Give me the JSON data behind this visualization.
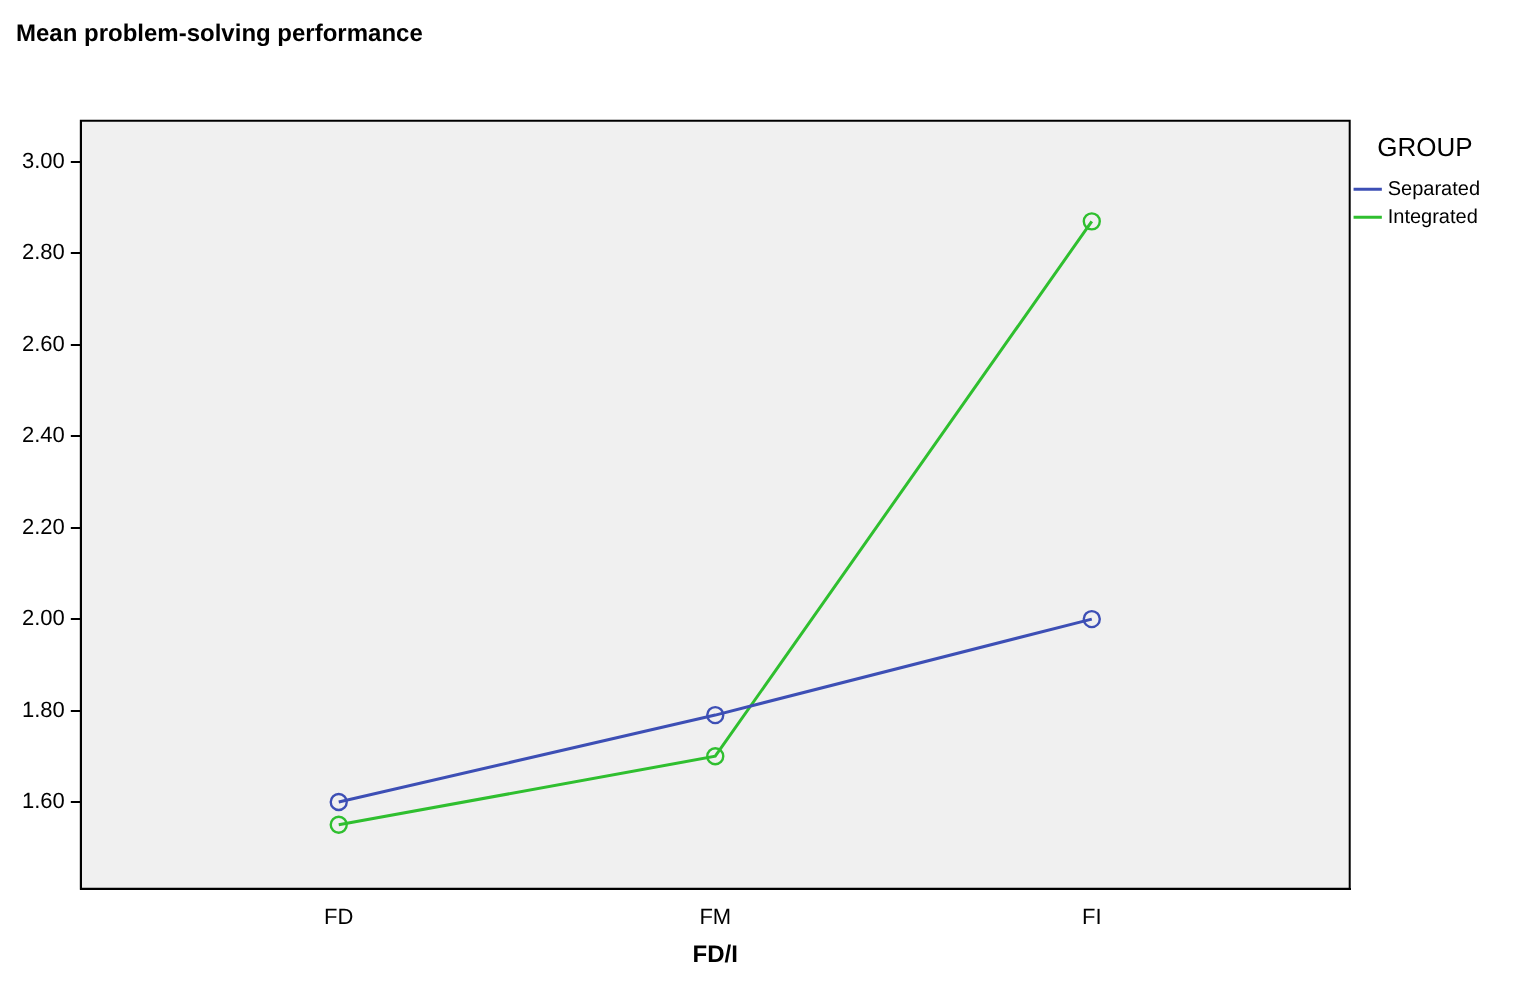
{
  "chart_data": {
    "type": "line",
    "title": "Mean problem-solving performance",
    "xlabel": "FD/I",
    "categories": [
      "FD",
      "FM",
      "FI"
    ],
    "series": [
      {
        "name": "Separated",
        "color": "#3d4fb5",
        "values": [
          1.6,
          1.79,
          2.0
        ]
      },
      {
        "name": "Integrated",
        "color": "#2fbf2f",
        "values": [
          1.55,
          1.7,
          2.87
        ]
      }
    ],
    "ylim": [
      1.41,
      3.09
    ],
    "yticks": [
      {
        "value": 1.6,
        "label": "1.60"
      },
      {
        "value": 1.8,
        "label": "1.80"
      },
      {
        "value": 2.0,
        "label": "2.00"
      },
      {
        "value": 2.2,
        "label": "2.20"
      },
      {
        "value": 2.4,
        "label": "2.40"
      },
      {
        "value": 2.6,
        "label": "2.60"
      },
      {
        "value": 2.8,
        "label": "2.80"
      },
      {
        "value": 3.0,
        "label": "3.00"
      }
    ],
    "legend_title": "GROUP",
    "legend": "right",
    "grid": false,
    "marker": "circle",
    "line_style": "solid"
  }
}
